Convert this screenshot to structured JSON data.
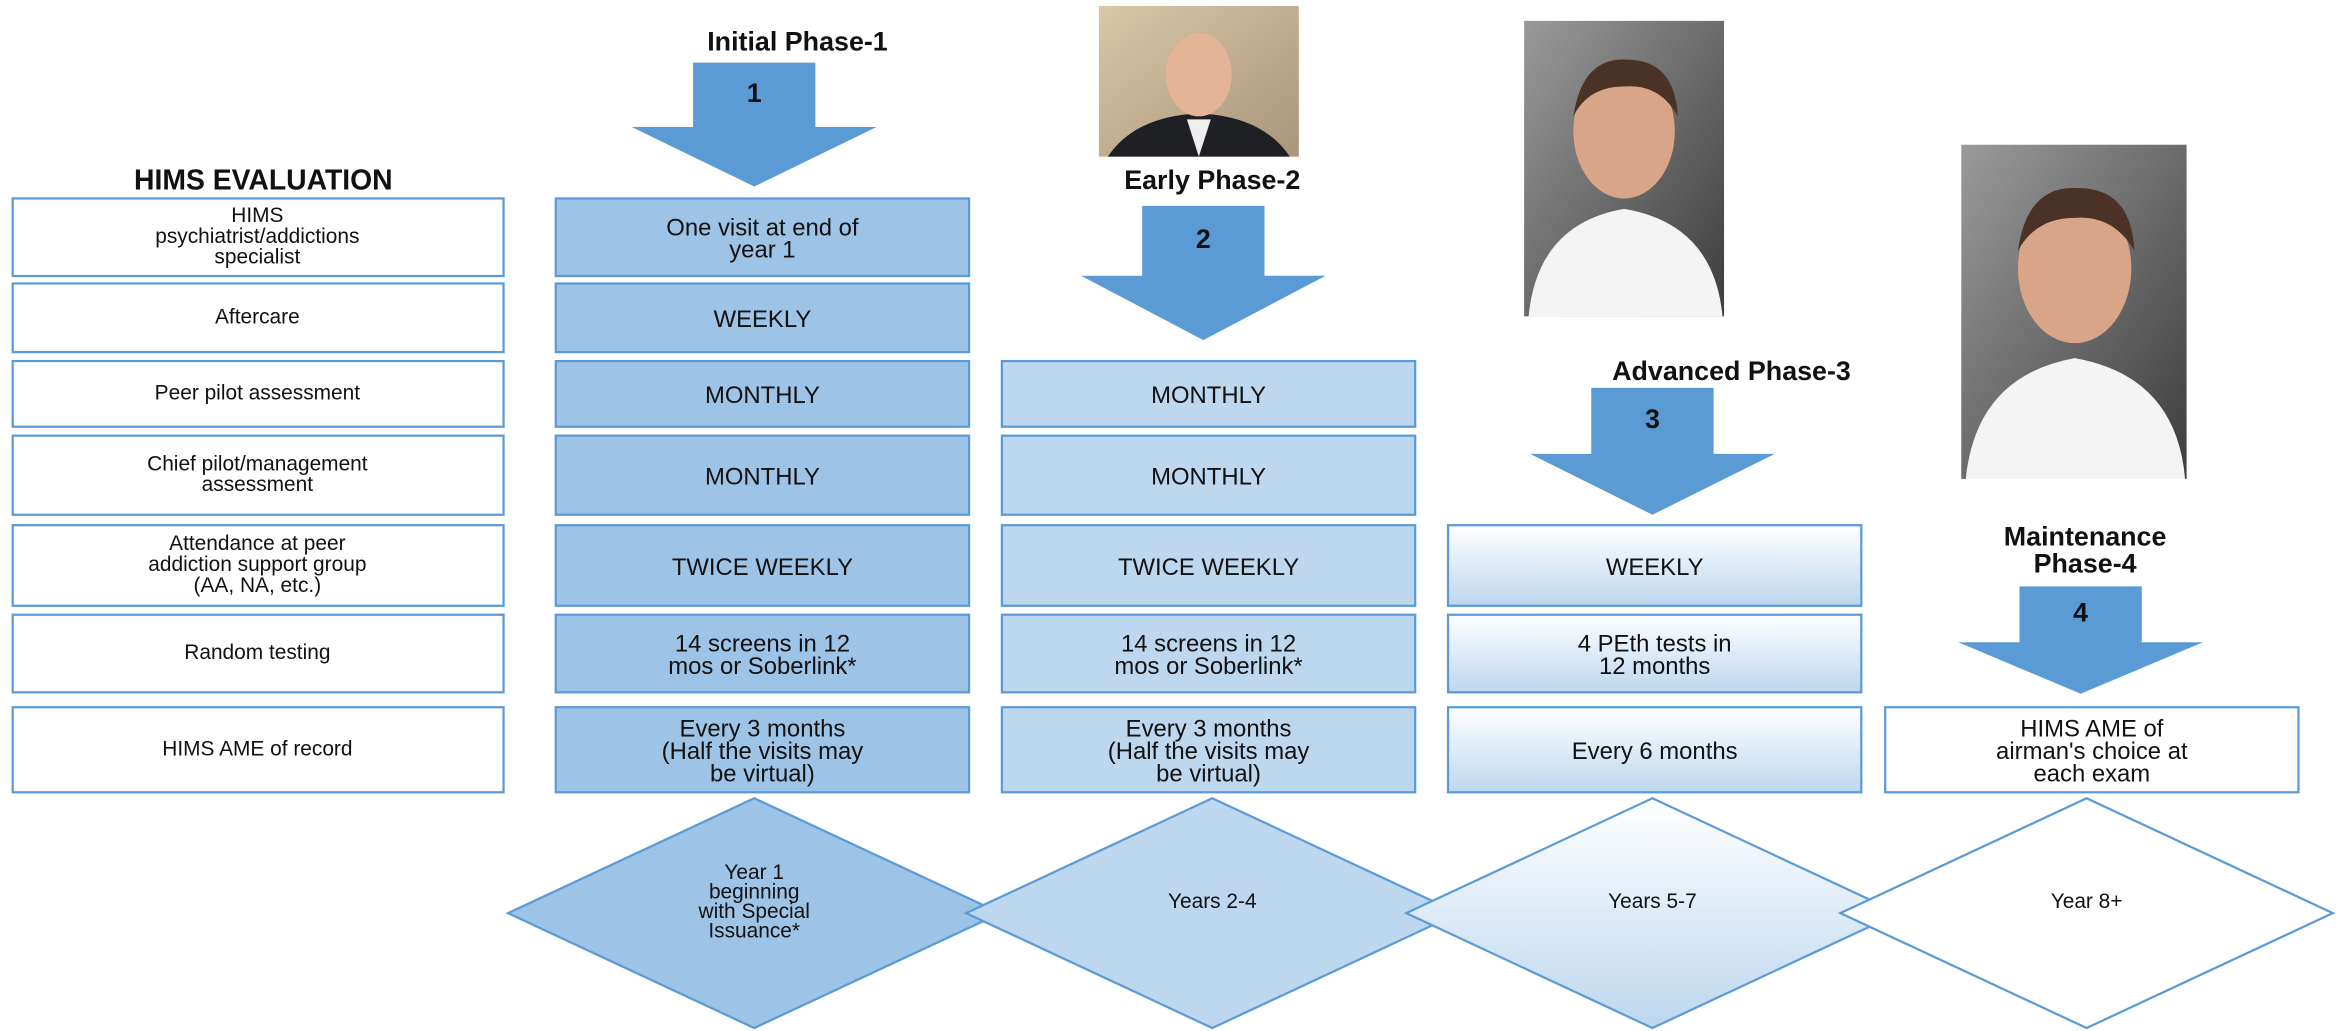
{
  "evaluation": {
    "title": "HIMS EVALUATION",
    "rows": [
      [
        "HIMS",
        "psychiatrist/addictions",
        "specialist"
      ],
      [
        "Aftercare"
      ],
      [
        "Peer pilot assessment"
      ],
      [
        "Chief pilot/management",
        "assessment"
      ],
      [
        "Attendance at peer",
        "addiction support group",
        "(AA, NA, etc.)"
      ],
      [
        "Random testing"
      ],
      [
        "HIMS AME of record"
      ]
    ]
  },
  "phases": [
    {
      "title": [
        "Initial Phase-1"
      ],
      "number": "1",
      "cells": [
        [
          "One visit at end of",
          "year 1"
        ],
        [
          "WEEKLY"
        ],
        [
          "MONTHLY"
        ],
        [
          "MONTHLY"
        ],
        [
          "TWICE WEEKLY"
        ],
        [
          "14 screens in 12",
          "mos or Soberlink*"
        ],
        [
          "Every 3 months",
          "(Half the visits may",
          "be virtual)"
        ]
      ],
      "duration": [
        "Year 1",
        "beginning",
        "with Special",
        "Issuance*"
      ]
    },
    {
      "title": [
        "Early Phase-2"
      ],
      "number": "2",
      "cells": [
        null,
        null,
        [
          "MONTHLY"
        ],
        [
          "MONTHLY"
        ],
        [
          "TWICE WEEKLY"
        ],
        [
          "14 screens in 12",
          "mos or Soberlink*"
        ],
        [
          "Every 3 months",
          "(Half the visits may",
          "be virtual)"
        ]
      ],
      "duration": [
        "Years 2-4"
      ]
    },
    {
      "title": [
        "Advanced Phase-3"
      ],
      "number": "3",
      "cells": [
        null,
        null,
        null,
        null,
        [
          "WEEKLY"
        ],
        [
          "4 PEth tests in",
          "12 months"
        ],
        [
          "Every 6 months"
        ]
      ],
      "duration": [
        "Years 5-7"
      ]
    },
    {
      "title": [
        "Maintenance",
        "Phase-4"
      ],
      "number": "4",
      "cells": [
        null,
        null,
        null,
        null,
        null,
        null,
        [
          "HIMS AME of",
          "airman's choice at",
          "each exam"
        ]
      ],
      "duration": [
        "Year 8+"
      ]
    }
  ]
}
